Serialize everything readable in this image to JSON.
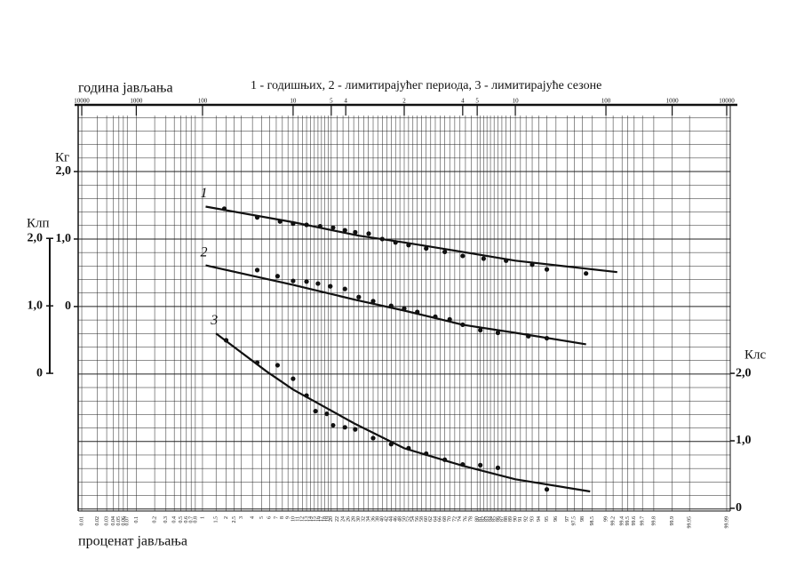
{
  "chart_data": {
    "type": "scatter",
    "title": "1 - годишњих, 2 - лимитирајућег периода, 3 - лимитирајуће сезоне",
    "x_label_top": "година јављања",
    "x_label": "проценат јављања",
    "grid": true,
    "xticks": [
      0.01,
      0.02,
      0.03,
      0.04,
      0.05,
      0.06,
      0.07,
      0.1,
      0.2,
      0.3,
      0.4,
      0.5,
      0.6,
      0.7,
      0.8,
      1,
      1.5,
      2,
      2.5,
      3,
      4,
      5,
      6,
      7,
      8,
      9,
      10,
      11,
      12,
      13,
      14,
      15,
      16,
      17,
      18,
      19,
      20,
      22,
      24,
      26,
      28,
      30,
      32,
      34,
      36,
      38,
      40,
      42,
      44,
      46,
      48,
      50,
      52,
      54,
      56,
      58,
      60,
      62,
      64,
      66,
      68,
      70,
      72,
      74,
      76,
      78,
      80,
      81,
      82,
      83,
      84,
      85,
      86,
      87,
      88,
      89,
      90,
      91,
      92,
      93,
      94,
      95,
      96,
      97,
      97.5,
      98,
      98.5,
      99,
      99.2,
      99.4,
      99.5,
      99.6,
      99.7,
      99.8,
      99.9,
      99.95,
      99.99
    ],
    "xticks_top": [
      {
        "value": 0.01,
        "label": "10000"
      },
      {
        "value": 0.1,
        "label": "1000"
      },
      {
        "value": 1,
        "label": "100"
      },
      {
        "value": 10,
        "label": "10"
      },
      {
        "value": 20,
        "label": "5"
      },
      {
        "value": 25,
        "label": "4"
      },
      {
        "value": 50,
        "label": "2"
      },
      {
        "value": 75,
        "label": "4"
      },
      {
        "value": 80,
        "label": "5"
      },
      {
        "value": 90,
        "label": "10"
      },
      {
        "value": 99,
        "label": "100"
      },
      {
        "value": 99.9,
        "label": "1000"
      },
      {
        "value": 99.99,
        "label": "10000"
      }
    ],
    "ylabel": "Кг",
    "ylim": [
      -3.03,
      2.83
    ],
    "yticks": [
      0,
      {
        "value": 1,
        "label": "1,0"
      },
      {
        "value": 2,
        "label": "2,0"
      }
    ],
    "yticks_minor": [
      -3,
      -2.8,
      -2.6,
      -2.4,
      -2.2,
      -2,
      -1.8,
      -1.6,
      -1.4,
      -1.2,
      -1,
      -0.8,
      -0.6,
      -0.4,
      -0.2,
      0,
      0.2,
      0.4,
      0.6,
      0.8,
      1,
      1.2,
      1.4,
      1.6,
      1.8,
      2,
      2.2,
      2.4,
      2.6,
      2.8
    ],
    "y2label": "Клп",
    "y2lim": [
      -2.04,
      3.82
    ],
    "y2ticks": [
      0,
      {
        "value": 1,
        "label": "1,0"
      },
      {
        "value": 2,
        "label": "2,0"
      }
    ],
    "y3label": "Клс",
    "y3lim": [
      -0.04,
      5.82
    ],
    "y3ticks": [
      0,
      {
        "value": 1,
        "label": "1,0"
      },
      {
        "value": 2,
        "label": "2,0"
      }
    ],
    "series": [
      {
        "name": "1",
        "axis": "y",
        "color": "#111111",
        "x": [
          1.9,
          4.5,
          7.6,
          10,
          13,
          16.6,
          20.6,
          24.7,
          28.6,
          34.1,
          40,
          46,
          52,
          60,
          68,
          75,
          82,
          88,
          93,
          95,
          98.2
        ],
        "values": [
          1.45,
          1.32,
          1.26,
          1.23,
          1.21,
          1.19,
          1.17,
          1.13,
          1.1,
          1.08,
          1,
          0.95,
          0.91,
          0.86,
          0.81,
          0.75,
          0.71,
          0.68,
          0.62,
          0.55,
          0.49
        ],
        "fit_x": [
          1.1,
          10,
          30,
          50,
          70,
          90,
          99.3
        ],
        "fit_values": [
          1.48,
          1.25,
          1.05,
          0.95,
          0.84,
          0.68,
          0.51
        ]
      },
      {
        "name": "2",
        "axis": "y2",
        "color": "#111111",
        "x": [
          4.5,
          7.2,
          10,
          13,
          16,
          19.7,
          24.7,
          30,
          36,
          44,
          50,
          56,
          64,
          70,
          75,
          81,
          86,
          92.4,
          95
        ],
        "values": [
          1.53,
          1.44,
          1.37,
          1.36,
          1.33,
          1.29,
          1.25,
          1.13,
          1.07,
          1,
          0.96,
          0.91,
          0.84,
          0.8,
          0.72,
          0.64,
          0.6,
          0.55,
          0.52
        ],
        "fit_x": [
          1.1,
          10,
          28.6,
          50,
          75,
          90,
          98.2
        ],
        "fit_values": [
          1.6,
          1.31,
          1.09,
          0.93,
          0.72,
          0.6,
          0.43
        ]
      },
      {
        "name": "3",
        "axis": "y3",
        "color": "#111111",
        "x": [
          2,
          4.5,
          7.2,
          10,
          13,
          15.3,
          18.6,
          20.6,
          24.7,
          28.6,
          36,
          44,
          52,
          60,
          68,
          75,
          81,
          86,
          95
        ],
        "values": [
          2.49,
          2.16,
          2.12,
          1.92,
          1.67,
          1.44,
          1.4,
          1.23,
          1.2,
          1.17,
          1.04,
          0.95,
          0.89,
          0.81,
          0.72,
          0.65,
          0.64,
          0.6,
          0.28
        ],
        "fit_x": [
          1.5,
          5.6,
          10,
          28.6,
          50,
          75,
          90,
          98.4
        ],
        "fit_values": [
          2.59,
          2.03,
          1.76,
          1.25,
          0.89,
          0.63,
          0.43,
          0.25
        ]
      }
    ]
  }
}
